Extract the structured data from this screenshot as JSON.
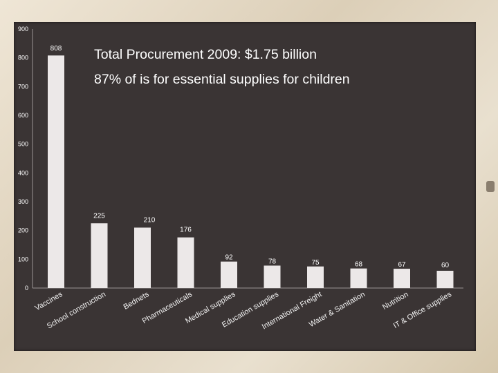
{
  "chart_data": {
    "type": "bar",
    "title": "Total Procurement 2009: $1.75 billion",
    "subtitle": "87% of is for essential supplies for children",
    "categories": [
      "Vaccines",
      "School construction",
      "Bednets",
      "Pharmaceuticals",
      "Medical supplies",
      "Education supplies",
      "International Freight",
      "Water & Sanitation",
      "Nutrition",
      "IT & Office supplies"
    ],
    "values": [
      808,
      225,
      210,
      176,
      92,
      78,
      75,
      68,
      67,
      60
    ],
    "ylim": [
      0,
      900
    ],
    "yticks": [
      0,
      100,
      200,
      300,
      400,
      500,
      600,
      700,
      800,
      900
    ],
    "xlabel": "",
    "ylabel": "",
    "grid": false,
    "bar_color": "#ece8e8"
  }
}
